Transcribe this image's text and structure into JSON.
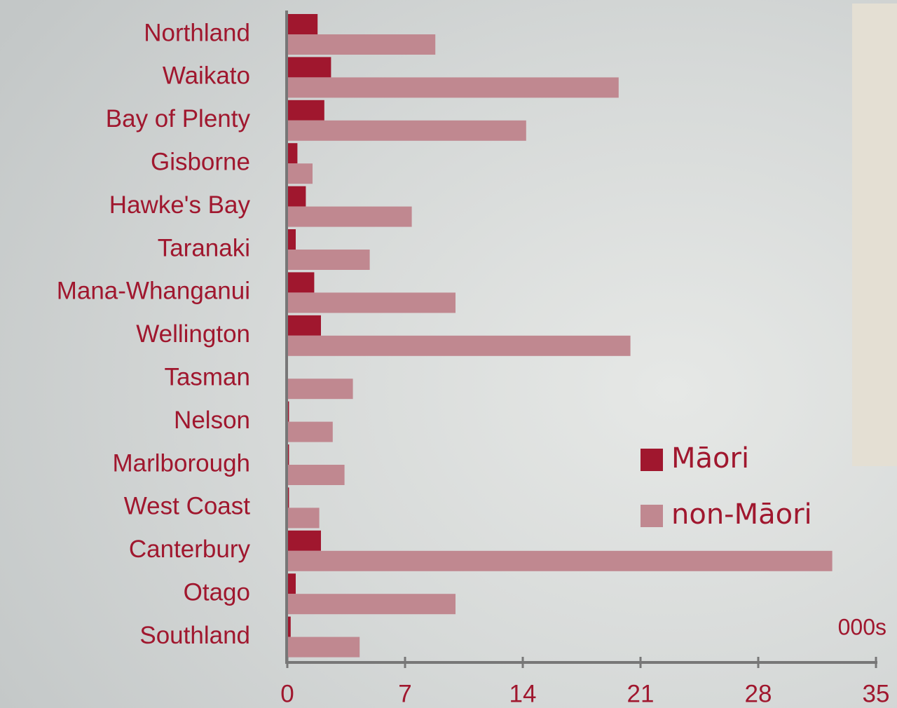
{
  "chart_data": {
    "type": "bar",
    "orientation": "horizontal",
    "categories": [
      "Northland",
      "Waikato",
      "Bay of Plenty",
      "Gisborne",
      "Hawke's Bay",
      "Taranaki",
      "Mana-Whanganui",
      "Wellington",
      "Tasman",
      "Nelson",
      "Marlborough",
      "West Coast",
      "Canterbury",
      "Otago",
      "Southland"
    ],
    "series": [
      {
        "name": "Māori",
        "color": "#a0172e",
        "values": [
          1.8,
          2.6,
          2.2,
          0.6,
          1.1,
          0.5,
          1.6,
          2.0,
          0,
          0.1,
          0.1,
          0.1,
          2.0,
          0.5,
          0.2
        ]
      },
      {
        "name": "non-Māori",
        "color": "#c08890",
        "values": [
          8.8,
          19.7,
          14.2,
          1.5,
          7.4,
          4.9,
          10.0,
          20.4,
          3.9,
          2.7,
          3.4,
          1.9,
          32.4,
          10.0,
          4.3
        ]
      }
    ],
    "xlabel": "000s",
    "xlim": [
      0,
      35
    ],
    "xticks": [
      0,
      7,
      14,
      21,
      28,
      35
    ]
  }
}
